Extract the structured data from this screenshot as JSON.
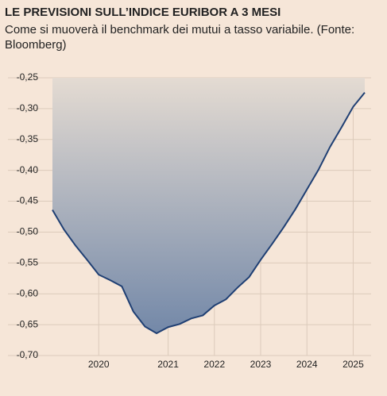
{
  "chart_data": {
    "type": "area",
    "title": "LE PREVISIONI SULL’INDICE EURIBOR A 3 MESI",
    "subtitle": "Come si muoverà il benchmark dei mutui a tasso variabile. (Fonte: Bloomberg)",
    "categories": [
      null,
      null,
      null,
      null,
      "2020",
      null,
      null,
      null,
      null,
      null,
      "2021",
      null,
      null,
      null,
      "2022",
      null,
      null,
      null,
      "2023",
      null,
      null,
      null,
      "2024",
      null,
      null,
      null,
      "2025",
      null
    ],
    "series": [
      {
        "name": "Euribor 3 mesi",
        "color": "#1f3f73",
        "values": [
          -0.464,
          -0.496,
          -0.522,
          -0.545,
          -0.569,
          -0.578,
          -0.588,
          -0.629,
          -0.653,
          -0.664,
          -0.654,
          -0.649,
          -0.64,
          -0.635,
          -0.619,
          -0.609,
          -0.59,
          -0.573,
          -0.545,
          -0.519,
          -0.492,
          -0.463,
          -0.431,
          -0.399,
          -0.362,
          -0.33,
          -0.297,
          -0.274
        ]
      }
    ],
    "ylim": [
      -0.7,
      -0.25
    ],
    "yticks": [
      {
        "value": -0.25,
        "label": "-0,25"
      },
      {
        "value": -0.3,
        "label": "-0,30"
      },
      {
        "value": -0.35,
        "label": "-0,35"
      },
      {
        "value": -0.4,
        "label": "-0,40"
      },
      {
        "value": -0.45,
        "label": "-0,45"
      },
      {
        "value": -0.5,
        "label": "-0,50"
      },
      {
        "value": -0.55,
        "label": "-0,55"
      },
      {
        "value": -0.6,
        "label": "-0,60"
      },
      {
        "value": -0.65,
        "label": "-0,65"
      },
      {
        "value": -0.7,
        "label": "-0,70"
      }
    ],
    "grid": true
  }
}
